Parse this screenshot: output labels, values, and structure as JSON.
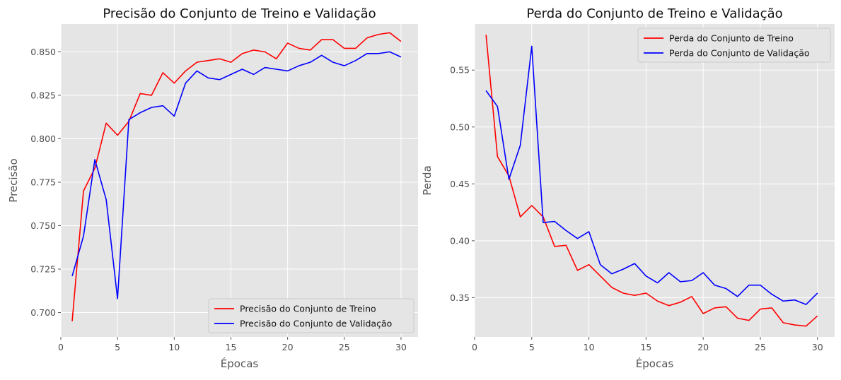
{
  "chart_data": [
    {
      "type": "line",
      "title": "Precisão do Conjunto de Treino e Validação",
      "xlabel": "Épocas",
      "ylabel": "Precisão",
      "xlim": [
        0,
        31.5
      ],
      "ylim": [
        0.686,
        0.866
      ],
      "xticks": [
        0,
        5,
        10,
        15,
        20,
        25,
        30
      ],
      "xtick_labels": [
        "0",
        "5",
        "10",
        "15",
        "20",
        "25",
        "30"
      ],
      "yticks": [
        0.7,
        0.725,
        0.75,
        0.775,
        0.8,
        0.825,
        0.85
      ],
      "ytick_labels": [
        "0.700",
        "0.725",
        "0.750",
        "0.775",
        "0.800",
        "0.825",
        "0.850"
      ],
      "grid": true,
      "legend_position": "lower-right",
      "x": [
        1,
        2,
        3,
        4,
        5,
        6,
        7,
        8,
        9,
        10,
        11,
        12,
        13,
        14,
        15,
        16,
        17,
        18,
        19,
        20,
        21,
        22,
        23,
        24,
        25,
        26,
        27,
        28,
        29,
        30
      ],
      "series": [
        {
          "name": "Precisão do Conjunto de Treino",
          "color": "#ff0000",
          "values": [
            0.695,
            0.77,
            0.783,
            0.809,
            0.802,
            0.81,
            0.826,
            0.825,
            0.838,
            0.832,
            0.839,
            0.844,
            0.845,
            0.846,
            0.844,
            0.849,
            0.851,
            0.85,
            0.846,
            0.855,
            0.852,
            0.851,
            0.857,
            0.857,
            0.852,
            0.852,
            0.858,
            0.86,
            0.861,
            0.856
          ]
        },
        {
          "name": "Precisão do Conjunto de Validação",
          "color": "#0000ff",
          "values": [
            0.721,
            0.744,
            0.788,
            0.765,
            0.708,
            0.811,
            0.815,
            0.818,
            0.819,
            0.813,
            0.832,
            0.839,
            0.835,
            0.834,
            0.837,
            0.84,
            0.837,
            0.841,
            0.84,
            0.839,
            0.842,
            0.844,
            0.848,
            0.844,
            0.842,
            0.845,
            0.849,
            0.849,
            0.85,
            0.847
          ]
        }
      ]
    },
    {
      "type": "line",
      "title": "Perda do Conjunto de Treino e Validação",
      "xlabel": "Épocas",
      "ylabel": "Perda",
      "xlim": [
        0,
        31.5
      ],
      "ylim": [
        0.3155,
        0.5905
      ],
      "xticks": [
        0,
        5,
        10,
        15,
        20,
        25,
        30
      ],
      "xtick_labels": [
        "0",
        "5",
        "10",
        "15",
        "20",
        "25",
        "30"
      ],
      "yticks": [
        0.35,
        0.4,
        0.45,
        0.5,
        0.55
      ],
      "ytick_labels": [
        "0.35",
        "0.40",
        "0.45",
        "0.50",
        "0.55"
      ],
      "grid": true,
      "legend_position": "upper-right",
      "x": [
        1,
        2,
        3,
        4,
        5,
        6,
        7,
        8,
        9,
        10,
        11,
        12,
        13,
        14,
        15,
        16,
        17,
        18,
        19,
        20,
        21,
        22,
        23,
        24,
        25,
        26,
        27,
        28,
        29,
        30
      ],
      "series": [
        {
          "name": "Perda do Conjunto de Treino",
          "color": "#ff0000",
          "values": [
            0.581,
            0.474,
            0.457,
            0.421,
            0.431,
            0.421,
            0.395,
            0.396,
            0.374,
            0.379,
            0.369,
            0.359,
            0.354,
            0.352,
            0.354,
            0.347,
            0.343,
            0.346,
            0.351,
            0.336,
            0.341,
            0.342,
            0.332,
            0.33,
            0.34,
            0.341,
            0.328,
            0.326,
            0.325,
            0.334
          ]
        },
        {
          "name": "Perda do Conjunto de Validação",
          "color": "#0000ff",
          "values": [
            0.532,
            0.518,
            0.454,
            0.484,
            0.571,
            0.416,
            0.417,
            0.409,
            0.402,
            0.408,
            0.379,
            0.371,
            0.375,
            0.38,
            0.369,
            0.363,
            0.372,
            0.364,
            0.365,
            0.372,
            0.361,
            0.358,
            0.351,
            0.361,
            0.361,
            0.353,
            0.347,
            0.348,
            0.344,
            0.354
          ]
        }
      ]
    }
  ]
}
